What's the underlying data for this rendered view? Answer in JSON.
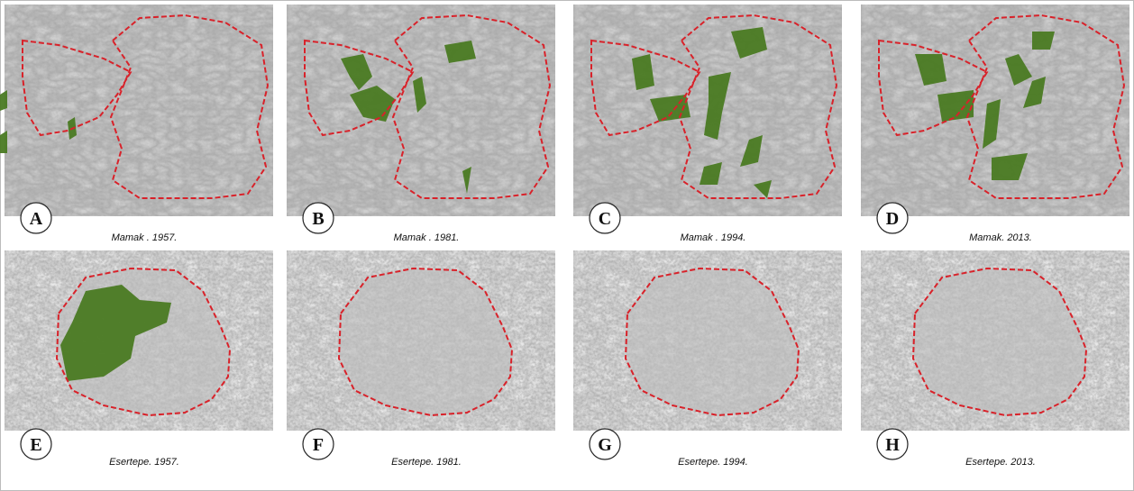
{
  "panels": [
    {
      "letter": "A",
      "caption": "Mamak . 1957."
    },
    {
      "letter": "B",
      "caption": "Mamak . 1981."
    },
    {
      "letter": "C",
      "caption": "Mamak . 1994."
    },
    {
      "letter": "D",
      "caption": "Mamak. 2013."
    },
    {
      "letter": "E",
      "caption": "Esertepe. 1957."
    },
    {
      "letter": "F",
      "caption": "Esertepe. 1981."
    },
    {
      "letter": "G",
      "caption": "Esertepe. 1994."
    },
    {
      "letter": "H",
      "caption": "Esertepe. 2013."
    }
  ]
}
